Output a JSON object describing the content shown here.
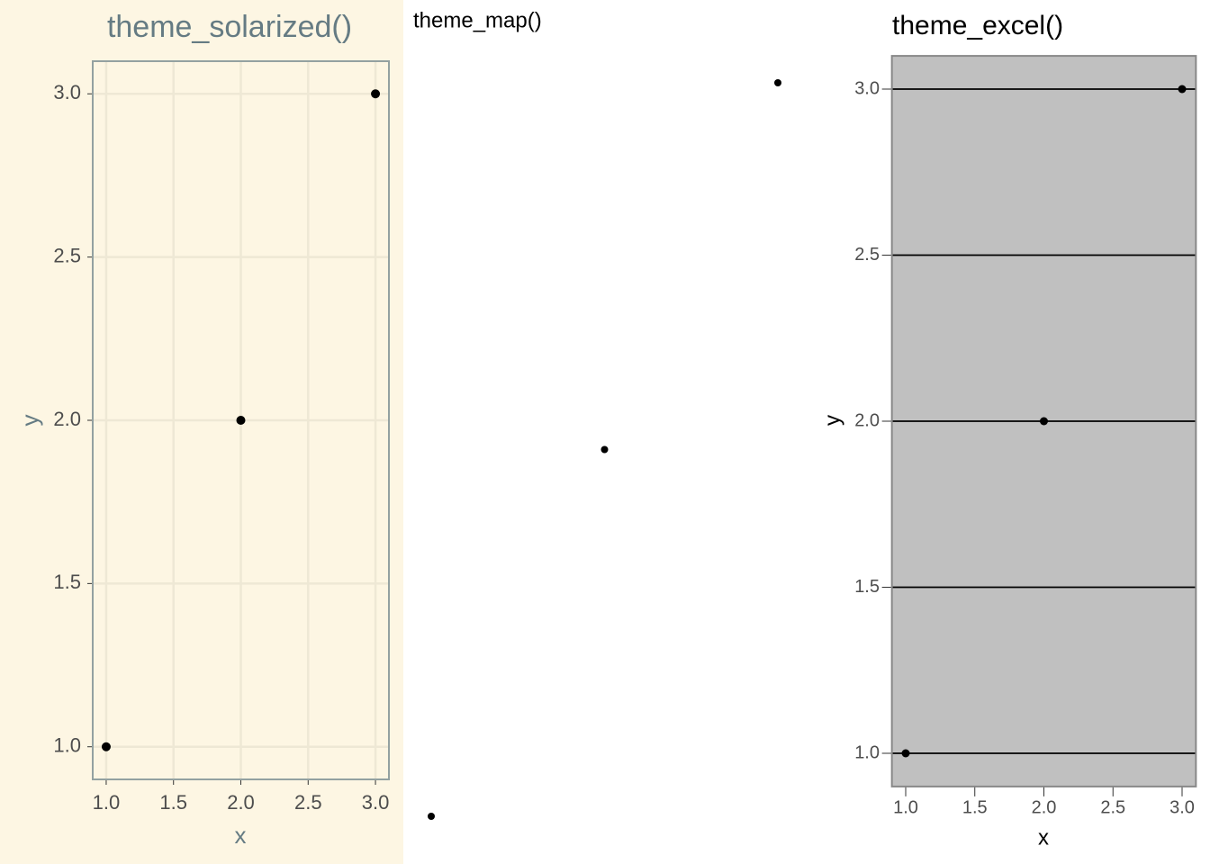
{
  "chart_data": [
    {
      "type": "scatter",
      "title": "theme_solarized()",
      "x_label": "x",
      "y_label": "y",
      "x": [
        1,
        2,
        3
      ],
      "y": [
        1,
        2,
        3
      ],
      "color": "#000000",
      "xlim": [
        0.9,
        3.1
      ],
      "ylim": [
        0.9,
        3.1
      ],
      "xticks": [
        {
          "value": 1,
          "label": "1.0"
        },
        {
          "value": 1.5,
          "label": "1.5"
        },
        {
          "value": 2,
          "label": "2.0"
        },
        {
          "value": 2.5,
          "label": "2.5"
        },
        {
          "value": 3,
          "label": "3.0"
        }
      ],
      "yticks": [
        {
          "value": 1,
          "label": "1.0"
        },
        {
          "value": 1.5,
          "label": "1.5"
        },
        {
          "value": 2,
          "label": "2.0"
        },
        {
          "value": 2.5,
          "label": "2.5"
        },
        {
          "value": 3,
          "label": "3.0"
        }
      ],
      "grid": "both",
      "background": "#fdf6e3"
    },
    {
      "type": "scatter",
      "title": "theme_map()",
      "x": [
        1,
        2,
        3
      ],
      "y": [
        1,
        2,
        3
      ],
      "color": "#000000",
      "xlim": [
        0.9,
        3.1
      ],
      "ylim": [
        0.9,
        3.1
      ],
      "grid": "none"
    },
    {
      "type": "scatter",
      "title": "theme_excel()",
      "x_label": "x",
      "y_label": "y",
      "x": [
        1,
        2,
        3
      ],
      "y": [
        1,
        2,
        3
      ],
      "color": "#000000",
      "xlim": [
        0.9,
        3.1
      ],
      "ylim": [
        0.9,
        3.1
      ],
      "xticks": [
        {
          "value": 1,
          "label": "1.0"
        },
        {
          "value": 1.5,
          "label": "1.5"
        },
        {
          "value": 2,
          "label": "2.0"
        },
        {
          "value": 2.5,
          "label": "2.5"
        },
        {
          "value": 3,
          "label": "3.0"
        }
      ],
      "yticks": [
        {
          "value": 1,
          "label": "1.0"
        },
        {
          "value": 1.5,
          "label": "1.5"
        },
        {
          "value": 2,
          "label": "2.0"
        },
        {
          "value": 2.5,
          "label": "2.5"
        },
        {
          "value": 3,
          "label": "3.0"
        }
      ],
      "grid": "y",
      "background": "#c0c0c0"
    }
  ]
}
